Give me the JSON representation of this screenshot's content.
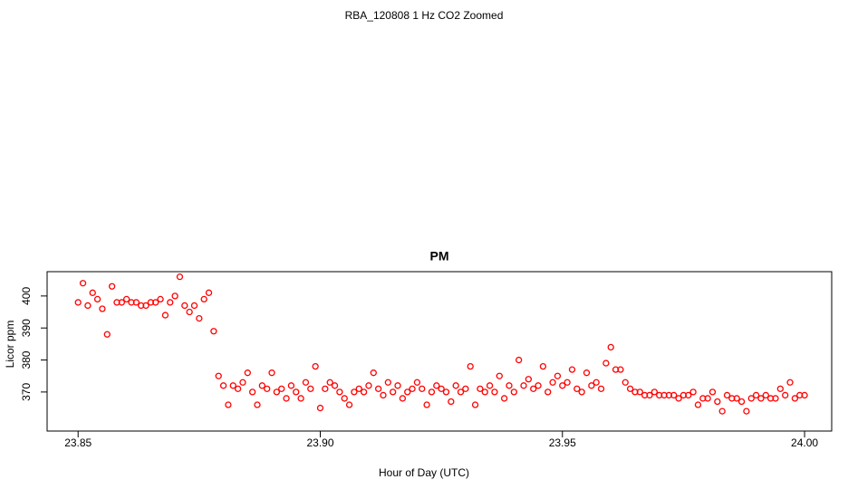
{
  "page_title": "RBA_120808  1 Hz CO2 Zoomed",
  "chart_data": {
    "type": "scatter",
    "title": "PM",
    "x_label": "Hour of Day (UTC)",
    "y_label": "Licor ppm",
    "color": "#ff0000",
    "xlim": [
      23.8436,
      24.0056
    ],
    "ylim": [
      357.8,
      407.6
    ],
    "xticks": [
      {
        "value": 23.85,
        "label": "23.85"
      },
      {
        "value": 23.9,
        "label": "23.90"
      },
      {
        "value": 23.95,
        "label": "23.95"
      },
      {
        "value": 24,
        "label": "24.00"
      }
    ],
    "yticks": [
      370,
      380,
      390,
      400
    ],
    "x": [
      23.85,
      23.851,
      23.852,
      23.853,
      23.854,
      23.855,
      23.856,
      23.857,
      23.858,
      23.859,
      23.86,
      23.861,
      23.862,
      23.863,
      23.864,
      23.865,
      23.866,
      23.867,
      23.868,
      23.869,
      23.87,
      23.871,
      23.872,
      23.873,
      23.874,
      23.875,
      23.876,
      23.877,
      23.878,
      23.879,
      23.88,
      23.881,
      23.882,
      23.883,
      23.884,
      23.885,
      23.886,
      23.887,
      23.888,
      23.889,
      23.89,
      23.891,
      23.892,
      23.893,
      23.894,
      23.895,
      23.896,
      23.897,
      23.898,
      23.899,
      23.9,
      23.901,
      23.902,
      23.903,
      23.904,
      23.905,
      23.906,
      23.907,
      23.908,
      23.909,
      23.91,
      23.911,
      23.912,
      23.913,
      23.914,
      23.915,
      23.916,
      23.917,
      23.918,
      23.919,
      23.92,
      23.921,
      23.922,
      23.923,
      23.924,
      23.925,
      23.926,
      23.927,
      23.928,
      23.929,
      23.93,
      23.931,
      23.932,
      23.933,
      23.934,
      23.935,
      23.936,
      23.937,
      23.938,
      23.939,
      23.94,
      23.941,
      23.942,
      23.943,
      23.944,
      23.945,
      23.946,
      23.947,
      23.948,
      23.949,
      23.95,
      23.951,
      23.952,
      23.953,
      23.954,
      23.955,
      23.956,
      23.957,
      23.958,
      23.959,
      23.96,
      23.961,
      23.962,
      23.963,
      23.964,
      23.965,
      23.966,
      23.967,
      23.968,
      23.969,
      23.97,
      23.971,
      23.972,
      23.973,
      23.974,
      23.975,
      23.976,
      23.977,
      23.978,
      23.979,
      23.98,
      23.981,
      23.982,
      23.983,
      23.984,
      23.985,
      23.986,
      23.987,
      23.988,
      23.989,
      23.99,
      23.991,
      23.992,
      23.993,
      23.994,
      23.995,
      23.996,
      23.997,
      23.998,
      23.999,
      24.0
    ],
    "values": [
      398,
      404,
      397,
      401,
      399,
      396,
      388,
      403,
      398,
      398,
      399,
      398,
      398,
      397,
      397,
      398,
      398,
      399,
      394,
      398,
      400,
      406,
      397,
      395,
      397,
      393,
      399,
      401,
      389,
      375,
      372,
      366,
      372,
      371,
      373,
      376,
      370,
      366,
      372,
      371,
      376,
      370,
      371,
      368,
      372,
      370,
      368,
      373,
      371,
      378,
      365,
      371,
      373,
      372,
      370,
      368,
      366,
      370,
      371,
      370,
      372,
      376,
      371,
      369,
      373,
      370,
      372,
      368,
      370,
      371,
      373,
      371,
      366,
      370,
      372,
      371,
      370,
      367,
      372,
      370,
      371,
      378,
      366,
      371,
      370,
      372,
      370,
      375,
      368,
      372,
      370,
      380,
      372,
      374,
      371,
      372,
      378,
      370,
      373,
      375,
      372,
      373,
      377,
      371,
      370,
      376,
      372,
      373,
      371,
      379,
      384,
      377,
      377,
      373,
      371,
      370,
      370,
      369,
      369,
      370,
      369,
      369,
      369,
      369,
      368,
      369,
      369,
      370,
      366,
      368,
      368,
      370,
      367,
      364,
      369,
      368,
      368,
      367,
      364,
      368,
      369,
      368,
      369,
      368,
      368,
      371,
      369,
      373,
      368,
      369,
      369
    ]
  }
}
